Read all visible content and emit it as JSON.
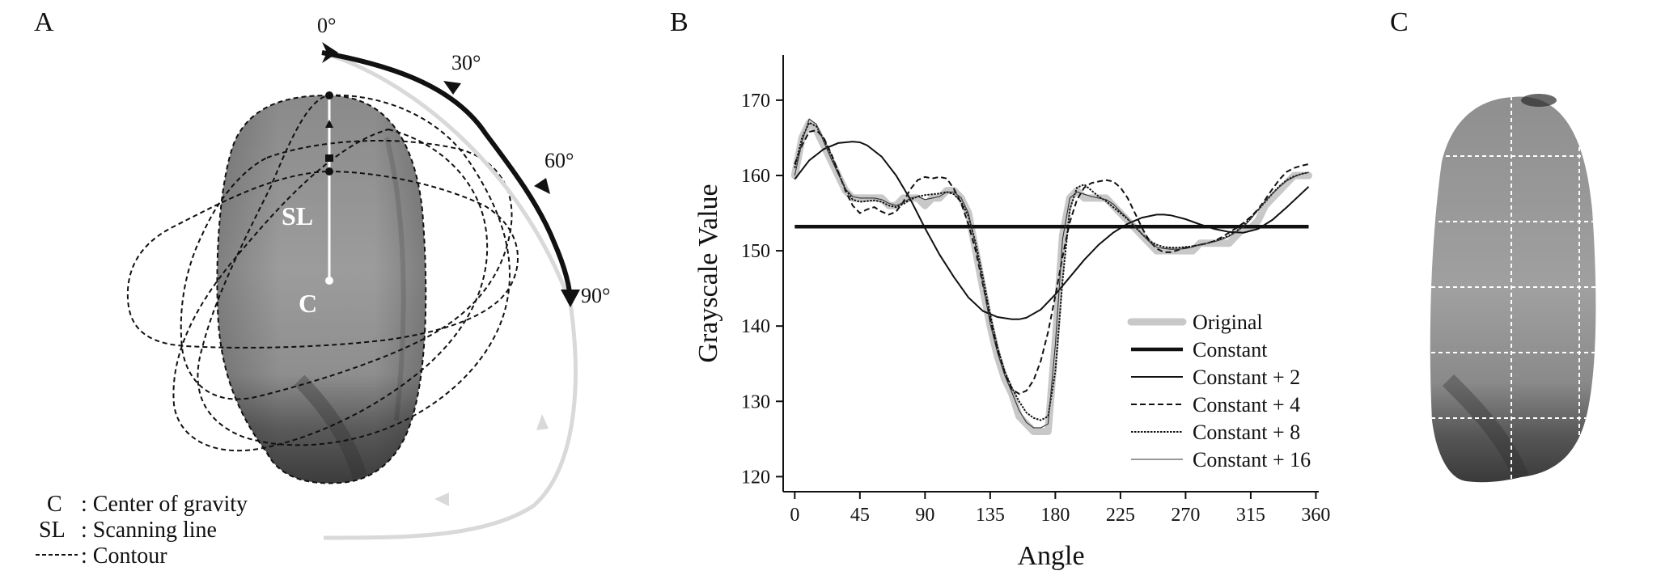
{
  "panels": {
    "a": {
      "letter": "A",
      "angle_labels": [
        "0°",
        "30°",
        "60°",
        "90°"
      ],
      "sl_label": "SL",
      "c_label": "C",
      "key": [
        {
          "symbol": "C",
          "text": ": Center of gravity"
        },
        {
          "symbol": "SL",
          "text": ": Scanning line"
        },
        {
          "symbol": "",
          "text": ": Contour"
        }
      ]
    },
    "b": {
      "letter": "B"
    },
    "c": {
      "letter": "C"
    }
  },
  "colors": {
    "seed_light": "#a8a8a8",
    "seed_dark": "#3c3c3c",
    "original_line": "#c8c8c8",
    "faded_arrow": "#d9d9d9"
  },
  "chart_data": {
    "type": "line",
    "xlabel": "Angle",
    "ylabel": "Grayscale Value",
    "xlim": [
      -8,
      362
    ],
    "ylim": [
      118,
      176
    ],
    "xticks": [
      0,
      45,
      90,
      135,
      180,
      225,
      270,
      315,
      360
    ],
    "yticks": [
      120,
      130,
      140,
      150,
      160,
      170
    ],
    "legend_position": "bottom-right",
    "series": [
      {
        "name": "Original",
        "style": "thick-gray",
        "x": [
          0,
          5,
          10,
          15,
          20,
          25,
          30,
          35,
          40,
          45,
          50,
          55,
          60,
          65,
          70,
          75,
          80,
          85,
          90,
          95,
          100,
          105,
          110,
          115,
          120,
          125,
          130,
          135,
          140,
          145,
          150,
          155,
          160,
          165,
          170,
          175,
          180,
          185,
          190,
          195,
          200,
          205,
          210,
          215,
          220,
          225,
          230,
          235,
          240,
          245,
          250,
          255,
          260,
          265,
          270,
          275,
          280,
          285,
          290,
          295,
          300,
          305,
          310,
          315,
          320,
          325,
          330,
          335,
          340,
          345,
          350,
          355
        ],
        "y": [
          160,
          165,
          167,
          166,
          164,
          162,
          160,
          158,
          157,
          157,
          157,
          157,
          157,
          156,
          156,
          157,
          157,
          157,
          156,
          157,
          157,
          158,
          158,
          157,
          155,
          150,
          145,
          140,
          136,
          133,
          131,
          128,
          127,
          126,
          126,
          126,
          138,
          152,
          157,
          158,
          157,
          157,
          157,
          157,
          156,
          155,
          154,
          153,
          152,
          151,
          150,
          150,
          150,
          150,
          150,
          150,
          151,
          151,
          151,
          151,
          151,
          152,
          153,
          153,
          154,
          156,
          157,
          158,
          159,
          160,
          160,
          160
        ]
      },
      {
        "name": "Constant",
        "style": "thick-black",
        "x": [
          0,
          355
        ],
        "y": [
          153.2,
          153.2
        ]
      },
      {
        "name": "Constant + 2",
        "style": "thin-solid",
        "x": [
          0,
          10,
          20,
          30,
          40,
          45,
          50,
          60,
          70,
          80,
          90,
          100,
          110,
          120,
          130,
          140,
          150,
          155,
          160,
          170,
          180,
          190,
          200,
          210,
          220,
          230,
          240,
          250,
          255,
          260,
          270,
          280,
          290,
          300,
          310,
          320,
          330,
          340,
          350,
          355
        ],
        "y": [
          159.5,
          162,
          163.5,
          164.3,
          164.5,
          164.4,
          164,
          162.5,
          160,
          156.8,
          153,
          149.5,
          146.5,
          143.8,
          142,
          141.2,
          140.9,
          140.9,
          141.1,
          142.2,
          144.2,
          146.5,
          148.8,
          150.8,
          152.4,
          153.6,
          154.4,
          154.8,
          154.8,
          154.7,
          154.2,
          153.5,
          152.9,
          152.5,
          152.4,
          152.9,
          154.1,
          155.8,
          157.6,
          158.5
        ]
      },
      {
        "name": "Constant + 4",
        "style": "dashed",
        "x": [
          0,
          5,
          10,
          15,
          20,
          25,
          30,
          35,
          40,
          45,
          50,
          55,
          60,
          65,
          70,
          75,
          80,
          85,
          90,
          95,
          100,
          105,
          110,
          115,
          120,
          125,
          130,
          135,
          140,
          145,
          150,
          155,
          160,
          165,
          170,
          175,
          180,
          185,
          190,
          195,
          200,
          205,
          210,
          215,
          220,
          225,
          230,
          235,
          240,
          245,
          250,
          255,
          260,
          265,
          270,
          275,
          280,
          285,
          290,
          295,
          300,
          305,
          310,
          315,
          320,
          325,
          330,
          335,
          340,
          345,
          350,
          355
        ],
        "y": [
          161.5,
          164,
          165.8,
          166,
          165,
          163,
          160.5,
          158,
          156,
          155,
          155.5,
          155.8,
          155.2,
          154.8,
          155.2,
          156.5,
          158.2,
          159.4,
          159.8,
          159.6,
          159.8,
          159.6,
          158.2,
          156.3,
          153.5,
          150,
          145.5,
          141,
          137,
          133.8,
          131.6,
          131,
          131.4,
          132.8,
          135.4,
          139.2,
          144,
          149.2,
          153.8,
          156.8,
          158.4,
          159,
          159.2,
          159.4,
          159.2,
          158.4,
          157,
          155,
          153,
          151.3,
          150.3,
          149.8,
          149.8,
          150.1,
          150.4,
          150.6,
          150.8,
          151,
          151.3,
          151.8,
          152.4,
          153,
          153.7,
          154.5,
          155.5,
          156.8,
          158.2,
          159.5,
          160.5,
          161,
          161.3,
          161.5
        ]
      },
      {
        "name": "Constant + 8",
        "style": "dotted",
        "x": [
          0,
          5,
          10,
          15,
          20,
          25,
          30,
          35,
          40,
          45,
          50,
          55,
          60,
          65,
          70,
          75,
          80,
          85,
          90,
          95,
          100,
          105,
          110,
          115,
          120,
          125,
          130,
          135,
          140,
          145,
          150,
          155,
          160,
          165,
          170,
          175,
          180,
          185,
          190,
          195,
          200,
          205,
          210,
          215,
          220,
          225,
          230,
          235,
          240,
          245,
          250,
          255,
          260,
          265,
          270,
          275,
          280,
          285,
          290,
          295,
          300,
          305,
          310,
          315,
          320,
          325,
          330,
          335,
          340,
          345,
          350,
          355
        ],
        "y": [
          161,
          165,
          167,
          166.5,
          164.8,
          162.8,
          160.4,
          158.2,
          156.8,
          156.5,
          156.6,
          156.7,
          156.5,
          156,
          155.8,
          156.2,
          156.8,
          157.2,
          157.4,
          157.5,
          157.6,
          157.8,
          157.5,
          156.5,
          154.6,
          151,
          146.5,
          141.5,
          137.2,
          134,
          131.8,
          130,
          128.5,
          127.8,
          127.5,
          128,
          134,
          146,
          155.5,
          158.4,
          158.8,
          158,
          157.2,
          156.6,
          155.8,
          155,
          154.2,
          153.2,
          152.2,
          151.3,
          150.8,
          150.5,
          150.4,
          150.4,
          150.5,
          150.6,
          150.8,
          151,
          151.3,
          151.6,
          152,
          152.6,
          153.4,
          154.4,
          155.4,
          156.5,
          157.6,
          158.6,
          159.4,
          159.9,
          160.2,
          160.4
        ]
      },
      {
        "name": "Constant + 16",
        "style": "hairline",
        "x": [
          0,
          5,
          10,
          15,
          20,
          25,
          30,
          35,
          40,
          45,
          50,
          55,
          60,
          65,
          70,
          75,
          80,
          85,
          90,
          95,
          100,
          105,
          110,
          115,
          120,
          125,
          130,
          135,
          140,
          145,
          150,
          155,
          160,
          165,
          170,
          175,
          180,
          185,
          190,
          195,
          200,
          205,
          210,
          215,
          220,
          225,
          230,
          235,
          240,
          245,
          250,
          255,
          260,
          265,
          270,
          275,
          280,
          285,
          290,
          295,
          300,
          305,
          310,
          315,
          320,
          325,
          330,
          335,
          340,
          345,
          350,
          355
        ],
        "y": [
          160,
          164.5,
          167.5,
          166.8,
          164.5,
          162.3,
          160.2,
          158.2,
          157.2,
          157,
          157,
          157,
          156.8,
          156.3,
          156,
          156.4,
          157,
          157.2,
          156.8,
          157,
          157.2,
          157.8,
          157.8,
          157,
          155,
          150.6,
          145.6,
          140.3,
          136.5,
          133.5,
          131.2,
          128.8,
          127.2,
          126.5,
          126.5,
          127,
          137.5,
          151.5,
          157,
          157.8,
          157.5,
          157.2,
          157,
          156.8,
          156.2,
          155.2,
          154.3,
          153.2,
          152.2,
          151.2,
          150.5,
          150.3,
          150.2,
          150.2,
          150.3,
          150.5,
          150.8,
          151,
          151.2,
          151.5,
          151.9,
          152.5,
          153.2,
          154.2,
          155.4,
          156.6,
          157.6,
          158.5,
          159.3,
          159.8,
          160.2,
          160.4
        ]
      }
    ]
  }
}
